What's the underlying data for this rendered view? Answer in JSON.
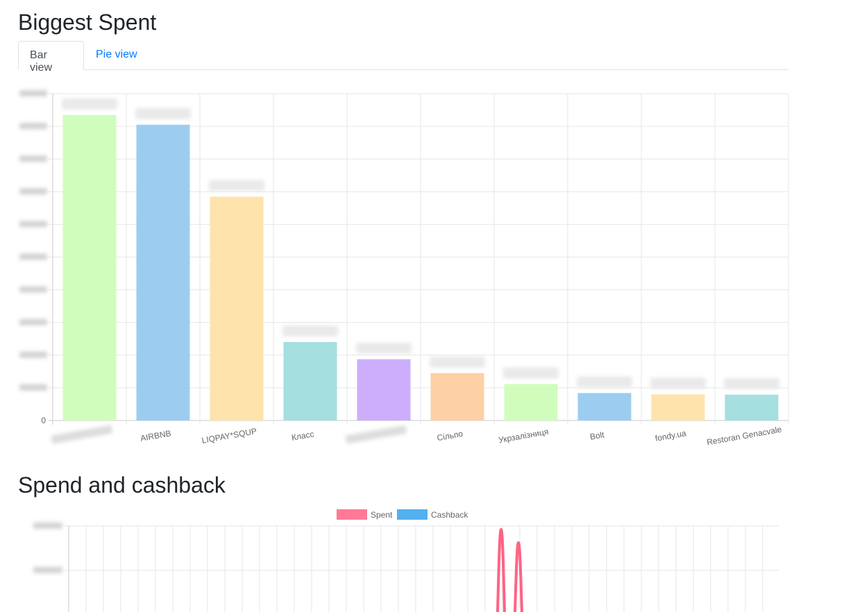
{
  "page": {
    "title": "Biggest Spent",
    "tabs": [
      {
        "label": "Bar view",
        "active": true
      },
      {
        "label": "Pie view",
        "active": false
      }
    ],
    "section2_title": "Spend and cashback"
  },
  "chart_data": [
    {
      "type": "bar",
      "categories": [
        "",
        "AIRBNB",
        "LIQPAY*SQUP",
        "Класс",
        "",
        "Сільпо",
        "Укрзалізниця",
        "Bolt",
        "fondy.ua",
        "Restoran Genacvale"
      ],
      "values": [
        18700,
        18100,
        13700,
        4800,
        3750,
        2900,
        2230,
        1680,
        1600,
        1580
      ],
      "colors": [
        "#d1fdbc",
        "#9ccdf1",
        "#fee3ad",
        "#a5dfdf",
        "#ccaefc",
        "#fed0a5",
        "#d1fdbc",
        "#9ccdf1",
        "#fee3ad",
        "#a5dfdf"
      ],
      "ylim": [
        0,
        20000
      ],
      "yticks_visible": [
        "0"
      ],
      "grid": true,
      "legend": "none"
    },
    {
      "type": "line",
      "series": [
        {
          "name": "Spent",
          "color": "#ff6384"
        },
        {
          "name": "Cashback",
          "color": "#36a2eb"
        }
      ],
      "legend": "top-center",
      "grid": true
    }
  ]
}
